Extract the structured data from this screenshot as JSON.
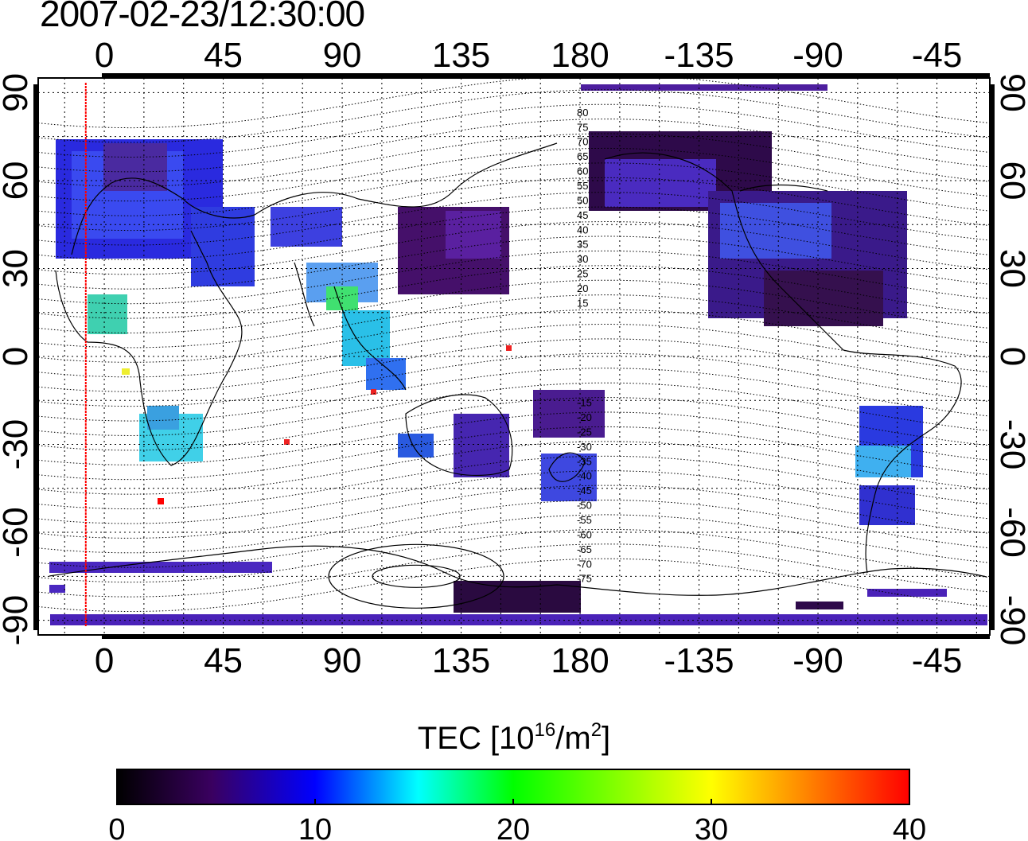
{
  "title": "2007-02-23/12:30:00",
  "map": {
    "lon_ticks_top": [
      "0",
      "45",
      "90",
      "135",
      "180",
      "-135",
      "-90",
      "-45"
    ],
    "lon_ticks_bottom": [
      "0",
      "45",
      "90",
      "135",
      "180",
      "-135",
      "-90",
      "-45"
    ],
    "lat_ticks_left": [
      "90",
      "60",
      "30",
      "0",
      "-30",
      "-60",
      "-90"
    ],
    "lat_ticks_right": [
      "90",
      "60",
      "30",
      "0",
      "-30",
      "-60",
      "-90"
    ],
    "lon_range": [
      -25,
      335
    ],
    "lat_range": [
      -95,
      95
    ],
    "terminator_lon": -7,
    "contour_labels": [
      "80",
      "75",
      "70",
      "65",
      "60",
      "55",
      "50",
      "45",
      "40",
      "35",
      "30",
      "25",
      "20",
      "15",
      "-15",
      "-20",
      "-25",
      "-30",
      "-35",
      "-40",
      "-45",
      "-50",
      "-55",
      "-60",
      "-65",
      "-70",
      "-75"
    ],
    "colors": {
      "terminator": "#ff0000",
      "grid": "#000000",
      "coast": "#000000"
    }
  },
  "colorbar": {
    "label_main": "TEC  [10",
    "label_exp": "16",
    "label_unit": "/m",
    "label_unit_exp": "2",
    "label_close": "]",
    "ticks": [
      "0",
      "10",
      "20",
      "30",
      "40"
    ],
    "range": [
      0,
      40
    ],
    "stops": [
      "#000000",
      "#3a0060",
      "#0000ff",
      "#00ffff",
      "#00ff00",
      "#ffff00",
      "#ff0000"
    ]
  }
}
